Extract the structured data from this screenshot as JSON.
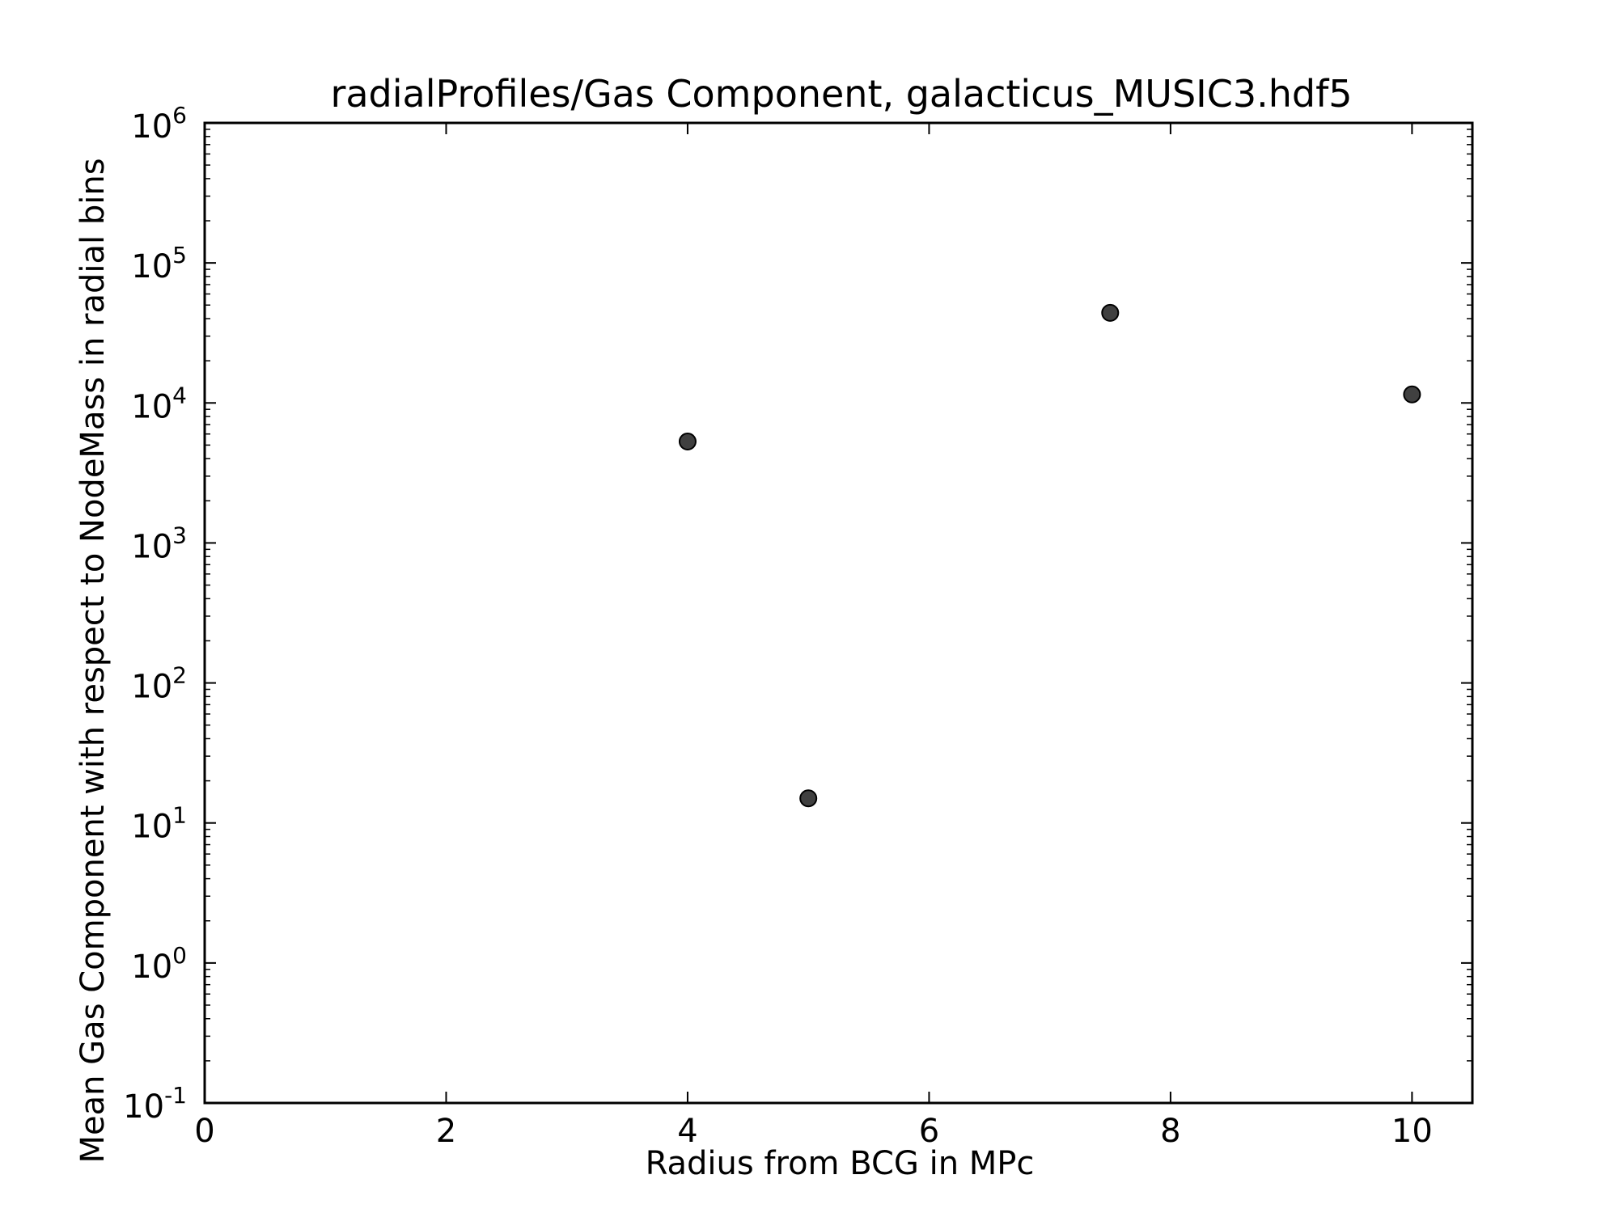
{
  "chart_data": {
    "type": "scatter",
    "title": "radialProfiles/Gas Component, galacticus_MUSIC3.hdf5",
    "xlabel": "Radius from BCG in MPc",
    "ylabel": "Mean Gas Component with respect to NodeMass in radial bins",
    "xlim": [
      0,
      10.5
    ],
    "ylim": [
      0.1,
      1000000
    ],
    "yscale": "log",
    "grid": false,
    "x_ticks": [
      0,
      2,
      4,
      6,
      8,
      10
    ],
    "y_tick_exponents": [
      -1,
      0,
      1,
      2,
      3,
      4,
      5,
      6
    ],
    "x_tick_labels": [
      "0",
      "2",
      "4",
      "6",
      "8",
      "10"
    ],
    "y_tick_labels": [
      {
        "base": "10",
        "exp": "-1"
      },
      {
        "base": "10",
        "exp": "0"
      },
      {
        "base": "10",
        "exp": "1"
      },
      {
        "base": "10",
        "exp": "2"
      },
      {
        "base": "10",
        "exp": "3"
      },
      {
        "base": "10",
        "exp": "4"
      },
      {
        "base": "10",
        "exp": "5"
      },
      {
        "base": "10",
        "exp": "6"
      }
    ],
    "marker_color": "#404040",
    "points": [
      {
        "x": 4,
        "y": 5300
      },
      {
        "x": 5,
        "y": 15
      },
      {
        "x": 7.5,
        "y": 44000
      },
      {
        "x": 10,
        "y": 11500
      }
    ]
  }
}
